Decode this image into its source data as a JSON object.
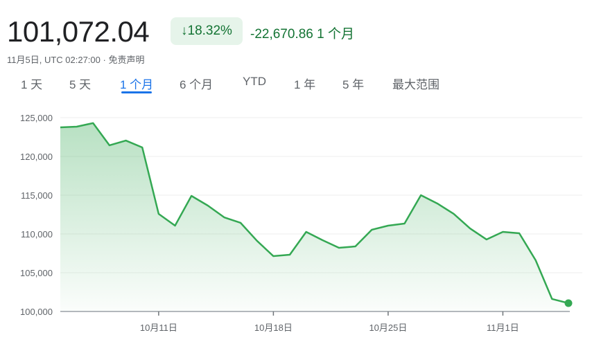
{
  "header": {
    "price": "101,072.04",
    "change_percent": "18.32%",
    "change_direction": "down",
    "change_abs": "-22,670.86",
    "change_period": "1 个月",
    "timestamp": "11月5日, UTC 02:27:00",
    "separator": " · ",
    "disclaimer": "免责声明"
  },
  "tabs": [
    {
      "label": "1 天"
    },
    {
      "label": "5 天"
    },
    {
      "label": "1 个月",
      "active": true
    },
    {
      "label": "6 个月"
    },
    {
      "label": "YTD"
    },
    {
      "label": "1 年"
    },
    {
      "label": "5 年"
    },
    {
      "label": "最大范围"
    }
  ],
  "colors": {
    "line": "#34a853",
    "positive_text": "#137333",
    "badge_bg": "#e6f4ea",
    "tab_active": "#1a73e8"
  },
  "chart_data": {
    "type": "area",
    "x": [
      "10-05",
      "10-06",
      "10-07",
      "10-08",
      "10-09",
      "10-10",
      "10-11",
      "10-12",
      "10-13",
      "10-14",
      "10-15",
      "10-16",
      "10-17",
      "10-18",
      "10-19",
      "10-20",
      "10-21",
      "10-22",
      "10-23",
      "10-24",
      "10-25",
      "10-26",
      "10-27",
      "10-28",
      "10-29",
      "10-30",
      "10-31",
      "11-01",
      "11-02",
      "11-03",
      "11-04",
      "11-05"
    ],
    "values": [
      123750,
      123840,
      124300,
      121430,
      122050,
      121160,
      112590,
      111070,
      114910,
      113660,
      112140,
      111430,
      109110,
      107140,
      107320,
      110270,
      109200,
      108210,
      108390,
      110540,
      111070,
      111340,
      115000,
      113930,
      112590,
      110710,
      109290,
      110270,
      110090,
      106610,
      101610,
      101072.04
    ],
    "ylim": [
      100000,
      125000
    ],
    "yticks": [
      100000,
      105000,
      110000,
      115000,
      120000,
      125000
    ],
    "ytick_labels": [
      "100,000",
      "105,000",
      "110,000",
      "115,000",
      "120,000",
      "125,000"
    ],
    "xtick_labels": [
      {
        "x": "10-11",
        "label": "10月11日"
      },
      {
        "x": "10-18",
        "label": "10月18日"
      },
      {
        "x": "10-25",
        "label": "10月25日"
      },
      {
        "x": "11-01",
        "label": "11月1日"
      }
    ],
    "grid": true,
    "end_marker": true
  }
}
